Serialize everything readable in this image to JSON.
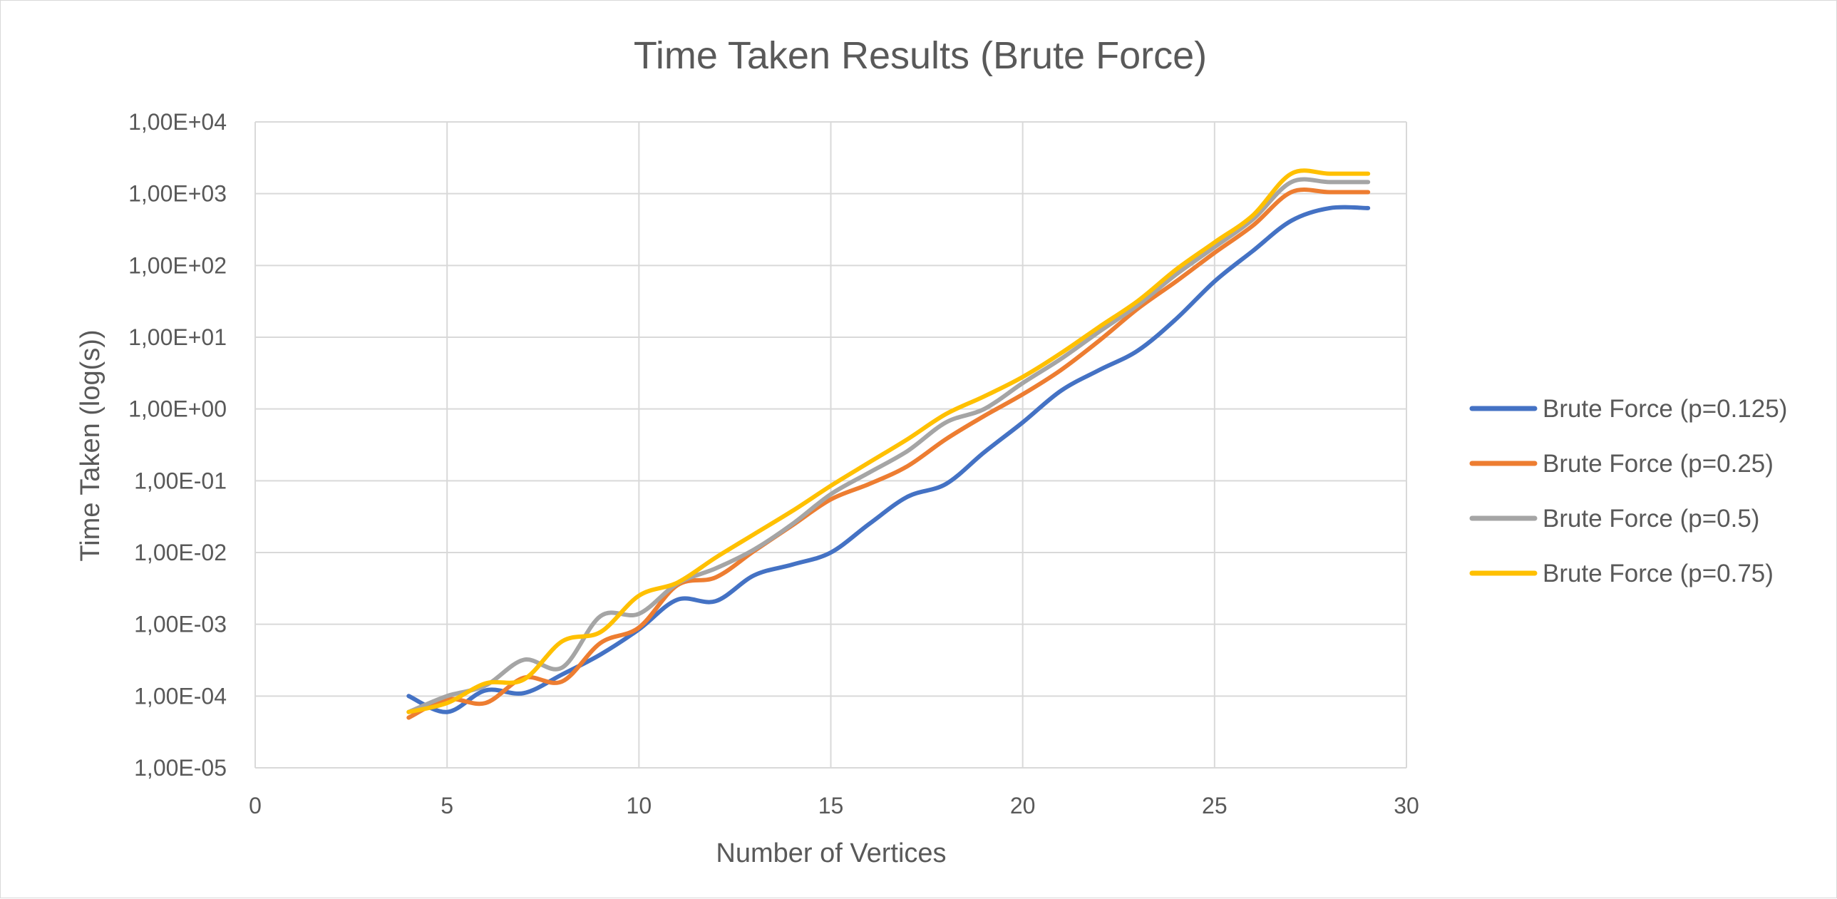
{
  "chart_data": {
    "type": "line",
    "title": "Time Taken Results (Brute Force)",
    "xlabel": "Number of Vertices",
    "ylabel": "Time Taken (log(s))",
    "xlim": [
      0,
      30
    ],
    "x_ticks": [
      0,
      5,
      10,
      15,
      20,
      25,
      30
    ],
    "x_tick_labels": [
      "0",
      "5",
      "10",
      "15",
      "20",
      "25",
      "30"
    ],
    "y_scale": "log10",
    "ylim": [
      1e-05,
      10000
    ],
    "y_ticks": [
      1e-05,
      0.0001,
      0.001,
      0.01,
      0.1,
      1,
      10,
      100,
      1000,
      10000
    ],
    "y_tick_labels": [
      "1,00E-05",
      "1,00E-04",
      "1,00E-03",
      "1,00E-02",
      "1,00E-01",
      "1,00E+00",
      "1,00E+01",
      "1,00E+02",
      "1,00E+03",
      "1,00E+04"
    ],
    "grid": true,
    "legend_position": "right",
    "x": [
      4,
      5,
      6,
      7,
      8,
      9,
      10,
      11,
      12,
      13,
      14,
      15,
      16,
      17,
      18,
      19,
      20,
      21,
      22,
      23,
      24,
      25,
      26,
      27,
      28,
      29
    ],
    "series": [
      {
        "name": "Brute Force (p=0.125)",
        "color": "#4472c4",
        "values": [
          0.0001,
          6e-05,
          0.00012,
          0.00011,
          0.0002,
          0.00038,
          0.00085,
          0.0022,
          0.0021,
          0.0048,
          0.0068,
          0.01,
          0.025,
          0.06,
          0.09,
          0.25,
          0.65,
          1.8,
          3.5,
          6.5,
          18,
          60,
          160,
          420,
          630,
          630
        ]
      },
      {
        "name": "Brute Force (p=0.25)",
        "color": "#ed7d31",
        "values": [
          5e-05,
          9e-05,
          8e-05,
          0.00018,
          0.00016,
          0.00055,
          0.0009,
          0.0035,
          0.0045,
          0.0105,
          0.024,
          0.055,
          0.09,
          0.16,
          0.38,
          0.8,
          1.6,
          3.5,
          9,
          25,
          60,
          150,
          360,
          1050,
          1050,
          1050
        ]
      },
      {
        "name": "Brute Force (p=0.5)",
        "color": "#a5a5a5",
        "values": [
          6e-05,
          0.0001,
          0.00014,
          0.00032,
          0.00025,
          0.0013,
          0.0014,
          0.0037,
          0.006,
          0.011,
          0.025,
          0.065,
          0.13,
          0.26,
          0.65,
          1,
          2.3,
          5,
          12,
          28,
          75,
          180,
          440,
          1450,
          1450,
          1450
        ]
      },
      {
        "name": "Brute Force (p=0.75)",
        "color": "#ffc000",
        "values": [
          6e-05,
          8e-05,
          0.00015,
          0.00017,
          0.00058,
          0.00078,
          0.0025,
          0.0038,
          0.0085,
          0.018,
          0.038,
          0.085,
          0.18,
          0.38,
          0.85,
          1.5,
          2.8,
          6,
          14,
          32,
          88,
          210,
          500,
          1900,
          1900,
          1900
        ]
      }
    ]
  }
}
